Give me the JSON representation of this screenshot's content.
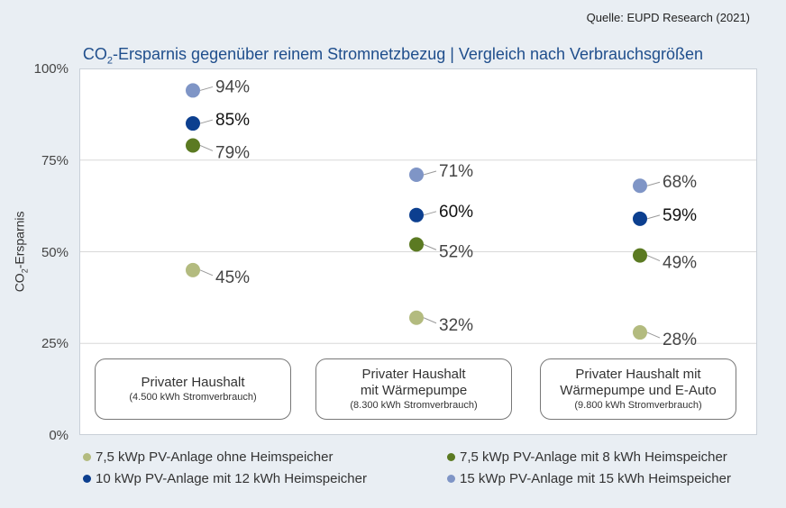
{
  "source": "Quelle: EUPD Research (2021)",
  "title_pre": "CO",
  "title_sub": "2",
  "title_post": "-Ersparnis gegenüber reinem Stromnetzbezug | Vergleich nach Verbrauchsgrößen",
  "chart_data": {
    "type": "scatter",
    "ylabel_pre": "CO",
    "ylabel_sub": "2",
    "ylabel_post": "-Ersparnis",
    "ylim": [
      0,
      100
    ],
    "yticks": [
      "0%",
      "25%",
      "50%",
      "75%",
      "100%"
    ],
    "grid": true,
    "legend_position": "bottom",
    "categories": [
      {
        "main": "Privater Haushalt",
        "sub": "(4.500 kWh Stromverbrauch)"
      },
      {
        "main": "Privater Haushalt mit Wärmepumpe",
        "main_lines": [
          "Privater Haushalt",
          "mit Wärmepumpe"
        ],
        "sub": "(8.300 kWh Stromverbrauch)"
      },
      {
        "main": "Privater Haushalt mit Wärmepumpe und E-Auto",
        "main_lines": [
          "Privater Haushalt mit",
          "Wärmepumpe und E-Auto"
        ],
        "sub": "(9.800 kWh Stromverbrauch)"
      }
    ],
    "series": [
      {
        "name": "7,5 kWp PV-Anlage ohne Heimspeicher",
        "color": "#b3bb7f",
        "values": [
          45,
          32,
          28
        ],
        "labels": [
          "45%",
          "32%",
          "28%"
        ]
      },
      {
        "name": "7,5 kWp PV-Anlage mit 8 kWh Heimspeicher",
        "color": "#5b7a22",
        "values": [
          79,
          52,
          49
        ],
        "labels": [
          "79%",
          "52%",
          "49%"
        ]
      },
      {
        "name": "10 kWp PV-Anlage mit 12 kWh Heimspeicher",
        "color": "#0c3f8f",
        "values": [
          85,
          60,
          59
        ],
        "labels": [
          "85%",
          "60%",
          "59%"
        ]
      },
      {
        "name": "15 kWp PV-Anlage mit 15 kWh Heimspeicher",
        "color": "#7f95c6",
        "values": [
          94,
          71,
          68
        ],
        "labels": [
          "94%",
          "71%",
          "68%"
        ]
      }
    ]
  }
}
